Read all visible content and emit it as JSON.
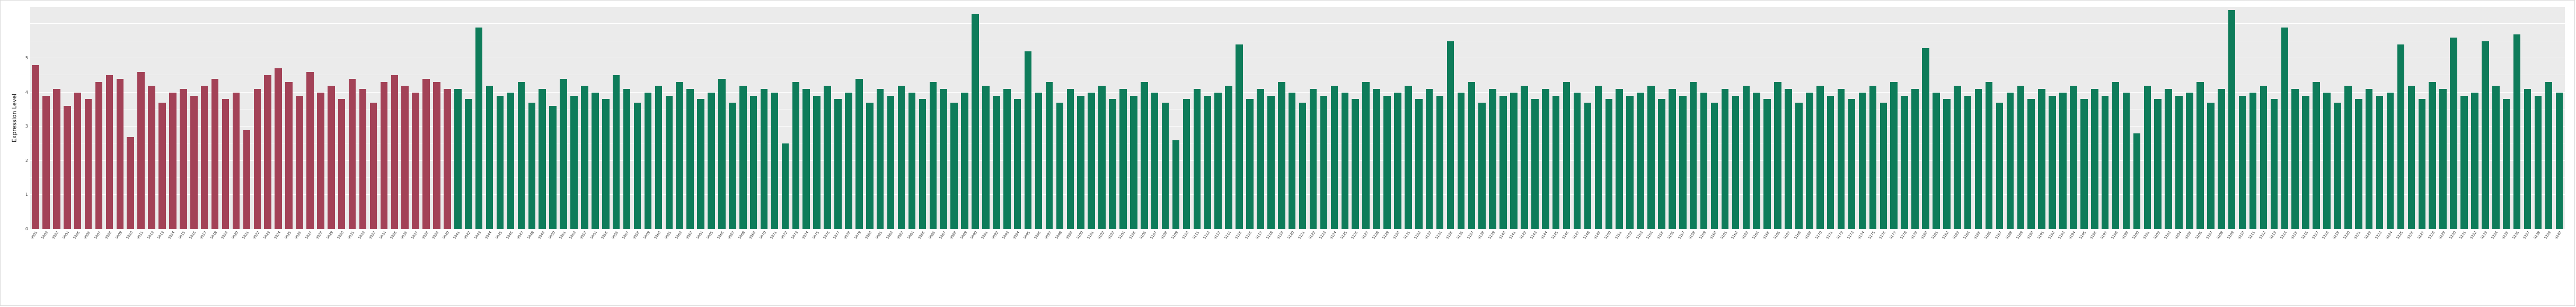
{
  "chart_data": {
    "type": "bar",
    "title": "",
    "xlabel": "",
    "ylabel": "Expression Level",
    "ylim": [
      0,
      6.5
    ],
    "yticks": [
      0,
      1,
      2,
      3,
      4,
      5
    ],
    "grid": "on",
    "legend": "none",
    "panel_background": "#ebebeb",
    "gridline_color": "#ffffff",
    "group_split_index": 40,
    "groups": [
      {
        "name": "red-group",
        "color": "#a34257",
        "count": 40
      },
      {
        "name": "green-group",
        "color": "#0e7c5a",
        "count": 200
      }
    ],
    "labels": [
      "S001",
      "S002",
      "S003",
      "S004",
      "S005",
      "S006",
      "S007",
      "S008",
      "S009",
      "S010",
      "S011",
      "S012",
      "S013",
      "S014",
      "S015",
      "S016",
      "S017",
      "S018",
      "S019",
      "S020",
      "S021",
      "S022",
      "S023",
      "S024",
      "S025",
      "S026",
      "S027",
      "S028",
      "S029",
      "S030",
      "S031",
      "S032",
      "S033",
      "S034",
      "S035",
      "S036",
      "S037",
      "S038",
      "S039",
      "S040",
      "S041",
      "S042",
      "S043",
      "S044",
      "S045",
      "S046",
      "S047",
      "S048",
      "S049",
      "S050",
      "S051",
      "S052",
      "S053",
      "S054",
      "S055",
      "S056",
      "S057",
      "S058",
      "S059",
      "S060",
      "S061",
      "S062",
      "S063",
      "S064",
      "S065",
      "S066",
      "S067",
      "S068",
      "S069",
      "S070",
      "S071",
      "S072",
      "S073",
      "S074",
      "S075",
      "S076",
      "S077",
      "S078",
      "S079",
      "S080",
      "S081",
      "S082",
      "S083",
      "S084",
      "S085",
      "S086",
      "S087",
      "S088",
      "S089",
      "S090",
      "S091",
      "S092",
      "S093",
      "S094",
      "S095",
      "S096",
      "S097",
      "S098",
      "S099",
      "S100",
      "S101",
      "S102",
      "S103",
      "S104",
      "S105",
      "S106",
      "S107",
      "S108",
      "S109",
      "S110",
      "S111",
      "S112",
      "S113",
      "S114",
      "S115",
      "S116",
      "S117",
      "S118",
      "S119",
      "S120",
      "S121",
      "S122",
      "S123",
      "S124",
      "S125",
      "S126",
      "S127",
      "S128",
      "S129",
      "S130",
      "S131",
      "S132",
      "S133",
      "S134",
      "S135",
      "S136",
      "S137",
      "S138",
      "S139",
      "S140",
      "S141",
      "S142",
      "S143",
      "S144",
      "S145",
      "S146",
      "S147",
      "S148",
      "S149",
      "S150",
      "S151",
      "S152",
      "S153",
      "S154",
      "S155",
      "S156",
      "S157",
      "S158",
      "S159",
      "S160",
      "S161",
      "S162",
      "S163",
      "S164",
      "S165",
      "S166",
      "S167",
      "S168",
      "S169",
      "S170",
      "S171",
      "S172",
      "S173",
      "S174",
      "S175",
      "S176",
      "S177",
      "S178",
      "S179",
      "S180",
      "S181",
      "S182",
      "S183",
      "S184",
      "S185",
      "S186",
      "S187",
      "S188",
      "S189",
      "S190",
      "S191",
      "S192",
      "S193",
      "S194",
      "S195",
      "S196",
      "S197",
      "S198",
      "S199",
      "S200",
      "S201",
      "S202",
      "S203",
      "S204",
      "S205",
      "S206",
      "S207",
      "S208",
      "S209",
      "S210",
      "S211",
      "S212",
      "S213",
      "S214",
      "S215",
      "S216",
      "S217",
      "S218",
      "S219",
      "S220",
      "S221",
      "S222",
      "S223",
      "S224",
      "S225",
      "S226",
      "S227",
      "S228",
      "S229",
      "S230",
      "S231",
      "S232",
      "S233",
      "S234",
      "S235",
      "S236",
      "S237",
      "S238",
      "S239",
      "S240"
    ],
    "values": [
      4.8,
      3.9,
      4.1,
      3.6,
      4.0,
      3.8,
      4.3,
      4.5,
      4.4,
      2.7,
      4.6,
      4.2,
      3.7,
      4.0,
      4.1,
      3.9,
      4.2,
      4.4,
      3.8,
      4.0,
      2.9,
      4.1,
      4.5,
      4.7,
      4.3,
      3.9,
      4.6,
      4.0,
      4.2,
      3.8,
      4.4,
      4.1,
      3.7,
      4.3,
      4.5,
      4.2,
      4.0,
      4.4,
      4.3,
      4.1,
      4.1,
      3.8,
      5.9,
      4.2,
      3.9,
      4.0,
      4.3,
      3.7,
      4.1,
      3.6,
      4.4,
      3.9,
      4.2,
      4.0,
      3.8,
      4.5,
      4.1,
      3.7,
      4.0,
      4.2,
      3.9,
      4.3,
      4.1,
      3.8,
      4.0,
      4.4,
      3.7,
      4.2,
      3.9,
      4.1,
      4.0,
      2.5,
      4.3,
      4.1,
      3.9,
      4.2,
      3.8,
      4.0,
      4.4,
      3.7,
      4.1,
      3.9,
      4.2,
      4.0,
      3.8,
      4.3,
      4.1,
      3.7,
      4.0,
      6.3,
      4.2,
      3.9,
      4.1,
      3.8,
      5.2,
      4.0,
      4.3,
      3.7,
      4.1,
      3.9,
      4.0,
      4.2,
      3.8,
      4.1,
      3.9,
      4.3,
      4.0,
      3.7,
      2.6,
      3.8,
      4.1,
      3.9,
      4.0,
      4.2,
      5.4,
      3.8,
      4.1,
      3.9,
      4.3,
      4.0,
      3.7,
      4.1,
      3.9,
      4.2,
      4.0,
      3.8,
      4.3,
      4.1,
      3.9,
      4.0,
      4.2,
      3.8,
      4.1,
      3.9,
      5.5,
      4.0,
      4.3,
      3.7,
      4.1,
      3.9,
      4.0,
      4.2,
      3.8,
      4.1,
      3.9,
      4.3,
      4.0,
      3.7,
      4.2,
      3.8,
      4.1,
      3.9,
      4.0,
      4.2,
      3.8,
      4.1,
      3.9,
      4.3,
      4.0,
      3.7,
      4.1,
      3.9,
      4.2,
      4.0,
      3.8,
      4.3,
      4.1,
      3.7,
      4.0,
      4.2,
      3.9,
      4.1,
      3.8,
      4.0,
      4.2,
      3.7,
      4.3,
      3.9,
      4.1,
      5.3,
      4.0,
      3.8,
      4.2,
      3.9,
      4.1,
      4.3,
      3.7,
      4.0,
      4.2,
      3.8,
      4.1,
      3.9,
      4.0,
      4.2,
      3.8,
      4.1,
      3.9,
      4.3,
      4.0,
      2.8,
      4.2,
      3.8,
      4.1,
      3.9,
      4.0,
      4.3,
      3.7,
      4.1,
      6.4,
      3.9,
      4.0,
      4.2,
      3.8,
      5.9,
      4.1,
      3.9,
      4.3,
      4.0,
      3.7,
      4.2,
      3.8,
      4.1,
      3.9,
      4.0,
      5.4,
      4.2,
      3.8,
      4.3,
      4.1,
      5.6,
      3.9,
      4.0,
      5.5,
      4.2,
      3.8,
      5.7,
      4.1,
      3.9,
      4.3,
      4.0
    ]
  }
}
